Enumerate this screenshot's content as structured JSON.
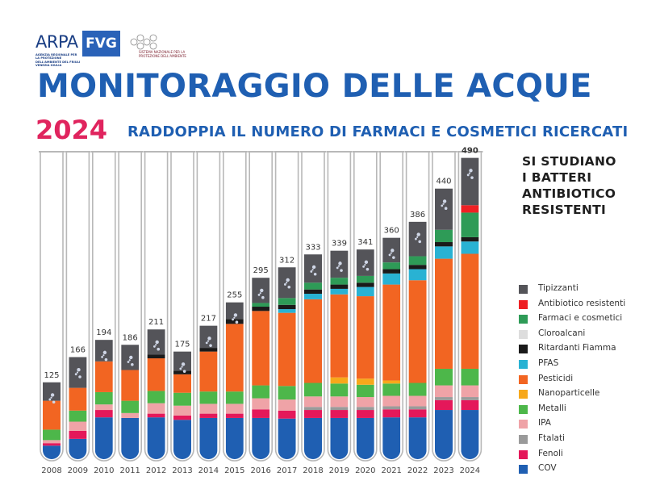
{
  "header": {
    "logo_main": "ARPA",
    "logo_box": "FVG",
    "logo_sub": "AGENZIA REGIONALE PER LA PROTEZIONE DELL'AMBIENTE DEL FRIULI VENEZIA GIULIA",
    "partner_text": "SISTEMA NAZIONALE PER LA PROTEZIONE DELL'AMBIENTE",
    "title": "MONITORAGGIO DELLE ACQUE",
    "year": "2024",
    "subtitle": "RADDOPPIA IL NUMERO DI FARMACI E COSMETICI RICERCATI"
  },
  "note": [
    "SI STUDIANO",
    "I BATTERI",
    "ANTIBIOTICO",
    "RESISTENTI"
  ],
  "colors": {
    "tube_outline": "#b8b8b8",
    "title_blue": "#1f5fb2",
    "year_pink": "#e0245e"
  },
  "chart_data": {
    "type": "bar",
    "stacked": true,
    "categories": [
      "2008",
      "2009",
      "2010",
      "2011",
      "2012",
      "2013",
      "2014",
      "2015",
      "2016",
      "2017",
      "2018",
      "2019",
      "2020",
      "2021",
      "2022",
      "2023",
      "2024"
    ],
    "totals": [
      125,
      166,
      194,
      186,
      211,
      175,
      217,
      255,
      295,
      312,
      333,
      339,
      341,
      360,
      386,
      440,
      490
    ],
    "ylim": [
      0,
      490
    ],
    "series": [
      {
        "name": "COV",
        "color": "#1f5fb2",
        "values": [
          22,
          33,
          68,
          67,
          68,
          64,
          67,
          67,
          67,
          66,
          67,
          67,
          67,
          68,
          68,
          80,
          80
        ]
      },
      {
        "name": "Fenoli",
        "color": "#e4185a",
        "values": [
          4,
          13,
          12,
          0,
          6,
          7,
          7,
          7,
          14,
          13,
          13,
          13,
          13,
          13,
          13,
          16,
          16
        ]
      },
      {
        "name": "Ftalati",
        "color": "#9a9a9a",
        "values": [
          0,
          0,
          0,
          0,
          0,
          0,
          0,
          0,
          0,
          0,
          5,
          5,
          5,
          5,
          5,
          5,
          5
        ]
      },
      {
        "name": "IPA",
        "color": "#efa3a7",
        "values": [
          5,
          15,
          9,
          8,
          17,
          16,
          16,
          16,
          18,
          18,
          17,
          17,
          16,
          17,
          17,
          19,
          19
        ]
      },
      {
        "name": "Metalli",
        "color": "#4db74a",
        "values": [
          17,
          18,
          20,
          20,
          20,
          21,
          20,
          20,
          21,
          22,
          22,
          21,
          20,
          20,
          21,
          27,
          27
        ]
      },
      {
        "name": "Nanoparticelle",
        "color": "#f7a81b",
        "values": [
          0,
          0,
          0,
          0,
          0,
          0,
          0,
          0,
          0,
          0,
          0,
          10,
          10,
          5,
          0,
          0,
          0
        ]
      },
      {
        "name": "Pesticidi",
        "color": "#f26522",
        "values": [
          47,
          37,
          50,
          50,
          53,
          30,
          65,
          110,
          121,
          119,
          136,
          135,
          134,
          156,
          167,
          179,
          187
        ]
      },
      {
        "name": "PFAS",
        "color": "#29b2d3",
        "values": [
          0,
          0,
          0,
          0,
          0,
          0,
          0,
          0,
          0,
          6,
          9,
          9,
          15,
          18,
          18,
          20,
          20
        ]
      },
      {
        "name": "Ritardanti Fiamma",
        "color": "#1a1a1a",
        "values": [
          0,
          0,
          0,
          0,
          6,
          6,
          6,
          8,
          7,
          7,
          7,
          7,
          7,
          7,
          7,
          7,
          7
        ]
      },
      {
        "name": "Cloroalcani",
        "color": "#dddddd",
        "values": [
          0,
          0,
          0,
          0,
          0,
          0,
          0,
          0,
          0,
          0,
          0,
          0,
          0,
          0,
          0,
          0,
          0
        ]
      },
      {
        "name": "Farmaci e cosmetici",
        "color": "#2e9b57",
        "values": [
          0,
          0,
          0,
          0,
          0,
          0,
          0,
          0,
          6,
          11,
          11,
          11,
          11,
          11,
          14,
          20,
          40
        ]
      },
      {
        "name": "Antibiotico resistenti",
        "color": "#ee2024",
        "values": [
          0,
          0,
          0,
          0,
          0,
          0,
          0,
          0,
          0,
          0,
          0,
          0,
          0,
          0,
          0,
          0,
          12
        ]
      },
      {
        "name": "Tipizzanti",
        "color": "#545459",
        "values": [
          30,
          50,
          35,
          41,
          41,
          31,
          36,
          27,
          41,
          50,
          46,
          44,
          43,
          40,
          56,
          67,
          77
        ]
      }
    ],
    "legend_order": [
      "Tipizzanti",
      "Antibiotico resistenti",
      "Farmaci e cosmetici",
      "Cloroalcani",
      "Ritardanti Fiamma",
      "PFAS",
      "Pesticidi",
      "Nanoparticelle",
      "Metalli",
      "IPA",
      "Ftalati",
      "Fenoli",
      "COV"
    ],
    "legend_position": "right"
  }
}
